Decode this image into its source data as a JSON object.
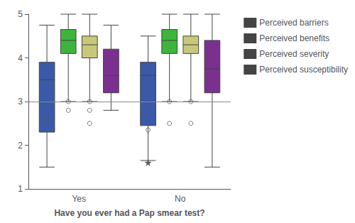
{
  "chart_data": {
    "type": "boxplot",
    "xlabel": "Have you ever had a Pap smear test?",
    "categories": [
      "Yes",
      "No"
    ],
    "ylim": [
      1,
      5
    ],
    "yticks": [
      1,
      2,
      3,
      4,
      5
    ],
    "hline_y": 3.0,
    "grid": false,
    "legend": "upper right",
    "series": [
      {
        "name": "Perceived barriers",
        "color": "#3a5aa8",
        "values": [
          [
            1.5,
            2.3,
            3.5,
            3.9,
            4.75
          ],
          [
            1.65,
            2.45,
            3.6,
            3.9,
            4.5
          ]
        ],
        "outliers": [
          [
            2.6,
            2.6
          ],
          [
            2.35
          ]
        ],
        "extreme_outliers": [
          [],
          [
            1.6
          ]
        ]
      },
      {
        "name": "Perceived benefits",
        "color": "#3db53d",
        "values": [
          [
            3.0,
            4.1,
            4.4,
            4.65,
            5.0
          ],
          [
            3.0,
            4.1,
            4.4,
            4.65,
            5.0
          ]
        ],
        "outliers": [
          [
            3.0,
            2.8
          ],
          [
            3.0,
            2.5
          ]
        ],
        "extreme_outliers": [
          [],
          []
        ]
      },
      {
        "name": "Perceived severity",
        "color": "#c8c87a",
        "values": [
          [
            3.0,
            4.0,
            4.3,
            4.5,
            5.0
          ],
          [
            3.0,
            4.1,
            4.3,
            4.5,
            5.0
          ]
        ],
        "outliers": [
          [
            3.0,
            2.8,
            2.5
          ],
          [
            3.0,
            2.5
          ]
        ],
        "extreme_outliers": [
          [],
          []
        ]
      },
      {
        "name": "Perceived susceptibility",
        "color": "#7b3090",
        "values": [
          [
            2.8,
            3.2,
            3.6,
            4.2,
            4.75
          ],
          [
            1.5,
            3.2,
            3.75,
            4.4,
            5.0
          ]
        ],
        "outliers": [
          [],
          []
        ],
        "extreme_outliers": [
          [],
          []
        ]
      }
    ]
  }
}
